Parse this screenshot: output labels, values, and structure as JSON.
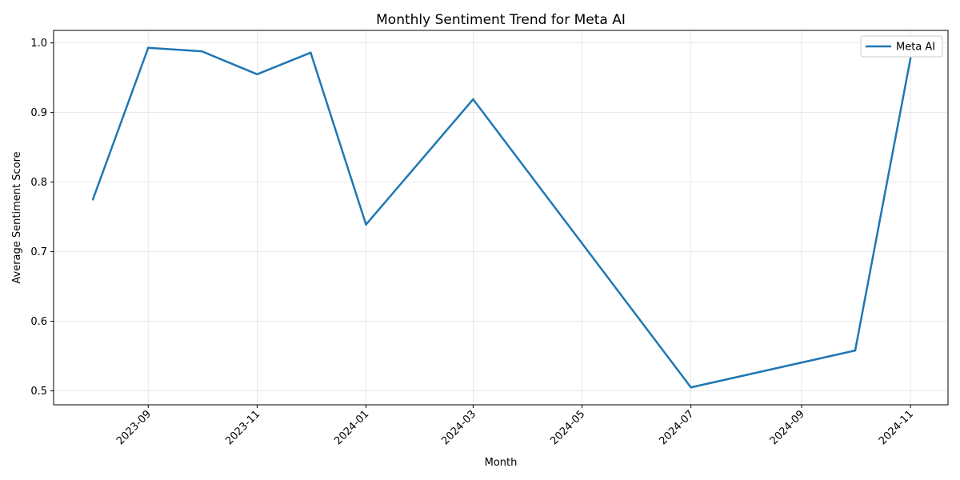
{
  "chart_data": {
    "type": "line",
    "title": "Monthly Sentiment Trend for Meta AI",
    "xlabel": "Month",
    "ylabel": "Average Sentiment Score",
    "x_tick_labels": [
      "2023-09",
      "2023-11",
      "2024-01",
      "2024-03",
      "2024-05",
      "2024-07",
      "2024-09",
      "2024-11"
    ],
    "y_tick_labels": [
      "0.5",
      "0.6",
      "0.7",
      "0.8",
      "0.9",
      "1.0"
    ],
    "ylim": [
      0.48,
      1.018
    ],
    "xlim": [
      "2023-07-10",
      "2024-11-22"
    ],
    "grid": true,
    "legend_position": "top-right",
    "series": [
      {
        "name": "Meta AI",
        "color": "#1f77b4",
        "x": [
          "2023-08-01",
          "2023-09-01",
          "2023-10-01",
          "2023-11-01",
          "2023-12-01",
          "2024-01-01",
          "2024-03-01",
          "2024-07-01",
          "2024-10-01",
          "2024-11-01"
        ],
        "values": [
          0.775,
          0.993,
          0.988,
          0.955,
          0.986,
          0.739,
          0.919,
          0.505,
          0.558,
          0.978
        ]
      }
    ]
  }
}
